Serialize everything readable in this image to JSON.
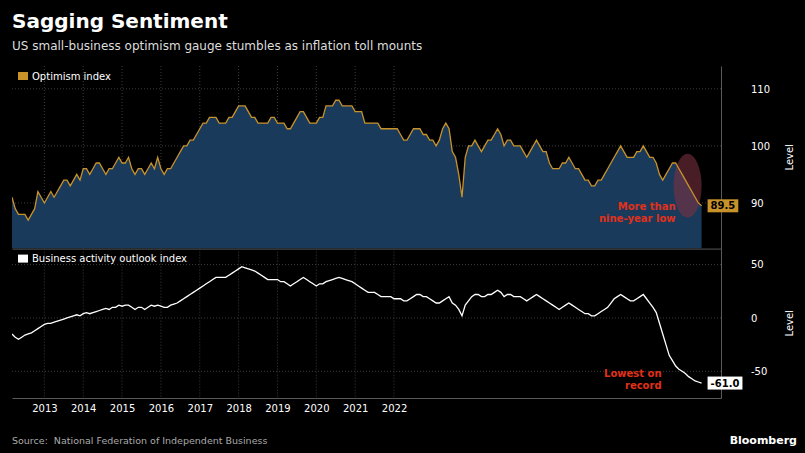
{
  "chart_data": [
    {
      "type": "area",
      "title": "Sagging Sentiment",
      "subtitle": "US small-business optimism gauge stumbles as inflation toll mounts",
      "ylabel": "Level",
      "x": [
        2012.1666666666667,
        2012.25,
        2012.3333333333333,
        2012.4166666666667,
        2012.5,
        2012.5833333333333,
        2012.6666666666667,
        2012.75,
        2012.8333333333333,
        2012.9166666666667,
        2013,
        2013.0833333333333,
        2013.1666666666667,
        2013.25,
        2013.3333333333333,
        2013.4166666666667,
        2013.5,
        2013.5833333333333,
        2013.6666666666667,
        2013.75,
        2013.8333333333333,
        2013.9166666666667,
        2014,
        2014.0833333333333,
        2014.1666666666667,
        2014.25,
        2014.3333333333333,
        2014.4166666666667,
        2014.5,
        2014.5833333333333,
        2014.6666666666667,
        2014.75,
        2014.8333333333333,
        2014.9166666666667,
        2015,
        2015.0833333333333,
        2015.1666666666667,
        2015.25,
        2015.3333333333333,
        2015.4166666666667,
        2015.5,
        2015.5833333333333,
        2015.6666666666667,
        2015.75,
        2015.8333333333333,
        2015.9166666666667,
        2016,
        2016.0833333333333,
        2016.1666666666667,
        2016.25,
        2016.3333333333333,
        2016.4166666666667,
        2016.5,
        2016.5833333333333,
        2016.6666666666667,
        2016.75,
        2016.8333333333333,
        2016.9166666666667,
        2017,
        2017.0833333333333,
        2017.1666666666667,
        2017.25,
        2017.3333333333333,
        2017.4166666666667,
        2017.5,
        2017.5833333333333,
        2017.6666666666667,
        2017.75,
        2017.8333333333333,
        2017.9166666666667,
        2018,
        2018.0833333333333,
        2018.1666666666667,
        2018.25,
        2018.3333333333333,
        2018.4166666666667,
        2018.5,
        2018.5833333333333,
        2018.6666666666667,
        2018.75,
        2018.8333333333333,
        2018.9166666666667,
        2019,
        2019.0833333333333,
        2019.1666666666667,
        2019.25,
        2019.3333333333333,
        2019.4166666666667,
        2019.5,
        2019.5833333333333,
        2019.6666666666667,
        2019.75,
        2019.8333333333333,
        2019.9166666666667,
        2020,
        2020.0833333333333,
        2020.1666666666667,
        2020.25,
        2020.3333333333333,
        2020.4166666666667,
        2020.5,
        2020.5833333333333,
        2020.6666666666667,
        2020.75,
        2020.8333333333333,
        2020.9166666666667,
        2021,
        2021.0833333333333,
        2021.1666666666667,
        2021.25,
        2021.3333333333333,
        2021.4166666666667,
        2021.5,
        2021.5833333333333,
        2021.6666666666667,
        2021.75,
        2021.8333333333333,
        2021.9166666666667,
        2022,
        2022.0833333333333,
        2022.1666666666667,
        2022.25,
        2022.3333333333333,
        2022.4166666666667,
        2022.5,
        2022.5833333333333,
        2022.6666666666667,
        2022.75,
        2022.8333333333333,
        2022.9166666666667,
        2023,
        2023.0833333333333,
        2023.1666666666667,
        2023.25,
        2023.3333333333333,
        2023.4166666666667,
        2023.5,
        2023.5833333333333,
        2023.6666666666667,
        2023.75,
        2023.8333333333333,
        2023.9166666666667,
        2024,
        2024.0833333333333,
        2024.1666666666667,
        2024.25,
        2024.3333333333333,
        2024.4166666666667,
        2024.5,
        2024.5833333333333,
        2024.6666666666667,
        2024.75,
        2024.8333333333333,
        2024.9166666666667,
        2025,
        2025.0833333333333,
        2025.1666666666667,
        2025.25,
        2025.3333333333333,
        2025.4166666666667,
        2025.5,
        2025.5833333333333,
        2025.6666666666667,
        2025.75,
        2025.8333333333333,
        2025.9166666666667,
        2026,
        2026.0833333333333,
        2026.1666666666667,
        2026.25,
        2026.3333333333333,
        2026.4166666666667,
        2026.5,
        2026.5833333333333,
        2026.6666666666667,
        2026.75,
        2026.8333333333333,
        2026.9166666666667,
        2027,
        2027.0833333333333,
        2027.1666666666667,
        2027.25,
        2027.3333333333333,
        2027.4166666666667,
        2027.5,
        2027.5833333333333,
        2027.6666666666667,
        2027.75,
        2027.8333333333333,
        2027.9166666666667,
        2028,
        2028.0833333333333,
        2028.1666666666667,
        2028.25,
        2028.3333333333333,
        2028.4166666666667,
        2028.5,
        2028.5833333333333,
        2028.6666666666667,
        2028.75,
        2028.8333333333333,
        2028.9166666666667,
        2029,
        2029.0833333333333,
        2029.1666666666667,
        2029.25,
        2029.3333333333333,
        2029.4166666666667,
        2029.5,
        2029.5833333333333,
        2029.6666666666667,
        2029.75,
        2029.8333333333333,
        2029.9166666666667
      ],
      "series": [
        {
          "name": "Optimism index",
          "color": "#c8922a",
          "values": [
            91,
            89,
            88,
            88,
            88,
            87,
            88,
            89,
            92,
            91,
            90,
            91,
            92,
            91,
            92,
            93,
            94,
            94,
            93,
            94,
            95,
            94,
            96,
            96,
            95,
            96,
            97,
            97,
            96,
            95,
            96,
            96,
            97,
            98,
            97,
            97,
            98,
            96,
            95,
            96,
            96,
            95,
            96,
            97,
            96,
            98,
            96,
            95,
            96,
            96,
            97,
            98,
            99,
            100,
            100,
            101,
            101,
            102,
            103,
            104,
            104,
            105,
            105,
            105,
            104,
            104,
            104,
            105,
            105,
            106,
            107,
            107,
            107,
            106,
            105,
            105,
            104,
            104,
            104,
            104,
            105,
            105,
            104,
            104,
            104,
            103,
            103,
            104,
            105,
            106,
            106,
            105,
            104,
            104,
            104,
            105,
            105,
            107,
            107,
            107,
            108,
            108,
            107,
            107,
            107,
            107,
            106,
            106,
            106,
            104,
            104,
            104,
            104,
            104,
            103,
            103,
            103,
            103,
            103,
            103,
            102,
            101,
            101,
            102,
            103,
            103,
            103,
            102,
            102,
            101,
            101,
            100,
            101,
            103,
            104,
            103,
            99,
            98,
            95,
            91,
            98,
            100,
            100,
            101,
            100,
            99,
            100,
            101,
            101,
            102,
            103,
            102,
            100,
            101,
            101,
            100,
            100,
            100,
            99,
            98,
            99,
            100,
            101,
            100,
            99,
            99,
            97,
            96,
            96,
            96,
            97,
            97,
            98,
            97,
            96,
            96,
            95,
            94,
            94,
            93,
            93,
            94,
            94,
            95,
            96,
            97,
            98,
            99,
            100,
            99,
            98,
            98,
            98,
            99,
            99,
            100,
            99,
            98,
            98,
            97,
            95,
            94,
            95,
            96,
            97,
            97,
            96,
            95,
            94,
            93,
            92,
            91,
            90,
            89.5
          ]
        }
      ],
      "xlim": [
        2012.1666666666667,
        2030.4166666666667
      ],
      "xticks": [
        2013,
        2014,
        2015,
        2016,
        2017,
        2018,
        2019,
        2020,
        2021,
        2022
      ],
      "ylim": [
        82,
        114
      ],
      "yticks": [
        90,
        100,
        110
      ],
      "grid": true,
      "legend": "upper left",
      "tick_labels": "y",
      "annotations": [
        "89.5",
        "More than\nnine-year low"
      ]
    },
    {
      "type": "line",
      "ylabel": "Level",
      "x": [
        2012.1666666666667,
        2012.25,
        2012.3333333333333,
        2012.4166666666667,
        2012.5,
        2012.5833333333333,
        2012.6666666666667,
        2012.75,
        2012.8333333333333,
        2012.9166666666667,
        2013,
        2013.0833333333333,
        2013.1666666666667,
        2013.25,
        2013.3333333333333,
        2013.4166666666667,
        2013.5,
        2013.5833333333333,
        2013.6666666666667,
        2013.75,
        2013.8333333333333,
        2013.9166666666667,
        2014,
        2014.0833333333333,
        2014.1666666666667,
        2014.25,
        2014.3333333333333,
        2014.4166666666667,
        2014.5,
        2014.5833333333333,
        2014.6666666666667,
        2014.75,
        2014.8333333333333,
        2014.9166666666667,
        2015,
        2015.0833333333333,
        2015.1666666666667,
        2015.25,
        2015.3333333333333,
        2015.4166666666667,
        2015.5,
        2015.5833333333333,
        2015.6666666666667,
        2015.75,
        2015.8333333333333,
        2015.9166666666667,
        2016,
        2016.0833333333333,
        2016.1666666666667,
        2016.25,
        2016.3333333333333,
        2016.4166666666667,
        2016.5,
        2016.5833333333333,
        2016.6666666666667,
        2016.75,
        2016.8333333333333,
        2016.9166666666667,
        2017,
        2017.0833333333333,
        2017.1666666666667,
        2017.25,
        2017.3333333333333,
        2017.4166666666667,
        2017.5,
        2017.5833333333333,
        2017.6666666666667,
        2017.75,
        2017.8333333333333,
        2017.9166666666667,
        2018,
        2018.0833333333333,
        2018.1666666666667,
        2018.25,
        2018.3333333333333,
        2018.4166666666667,
        2018.5,
        2018.5833333333333,
        2018.6666666666667,
        2018.75,
        2018.8333333333333,
        2018.9166666666667,
        2019,
        2019.0833333333333,
        2019.1666666666667,
        2019.25,
        2019.3333333333333,
        2019.4166666666667,
        2019.5,
        2019.5833333333333,
        2019.6666666666667,
        2019.75,
        2019.8333333333333,
        2019.9166666666667,
        2020,
        2020.0833333333333,
        2020.1666666666667,
        2020.25,
        2020.3333333333333,
        2020.4166666666667,
        2020.5,
        2020.5833333333333,
        2020.6666666666667,
        2020.75,
        2020.8333333333333,
        2020.9166666666667,
        2021,
        2021.0833333333333,
        2021.1666666666667,
        2021.25,
        2021.3333333333333,
        2021.4166666666667,
        2021.5,
        2021.5833333333333,
        2021.6666666666667,
        2021.75,
        2021.8333333333333,
        2021.9166666666667,
        2022,
        2022.0833333333333,
        2022.1666666666667,
        2022.25,
        2022.3333333333333,
        2022.4166666666667,
        2022.5,
        2022.5833333333333,
        2022.6666666666667,
        2022.75,
        2022.8333333333333,
        2022.9166666666667,
        2023,
        2023.0833333333333,
        2023.1666666666667,
        2023.25,
        2023.3333333333333,
        2023.4166666666667,
        2023.5,
        2023.5833333333333,
        2023.6666666666667,
        2023.75,
        2023.8333333333333,
        2023.9166666666667,
        2024,
        2024.0833333333333,
        2024.1666666666667,
        2024.25,
        2024.3333333333333,
        2024.4166666666667,
        2024.5,
        2024.5833333333333,
        2024.6666666666667,
        2024.75,
        2024.8333333333333,
        2024.9166666666667,
        2025,
        2025.0833333333333,
        2025.1666666666667,
        2025.25,
        2025.3333333333333,
        2025.4166666666667,
        2025.5,
        2025.5833333333333,
        2025.6666666666667,
        2025.75,
        2025.8333333333333,
        2025.9166666666667,
        2026,
        2026.0833333333333,
        2026.1666666666667,
        2026.25,
        2026.3333333333333,
        2026.4166666666667,
        2026.5,
        2026.5833333333333,
        2026.6666666666667,
        2026.75,
        2026.8333333333333,
        2026.9166666666667,
        2027,
        2027.0833333333333,
        2027.1666666666667,
        2027.25,
        2027.3333333333333,
        2027.4166666666667,
        2027.5,
        2027.5833333333333,
        2027.6666666666667,
        2027.75,
        2027.8333333333333,
        2027.9166666666667,
        2028,
        2028.0833333333333,
        2028.1666666666667,
        2028.25,
        2028.3333333333333,
        2028.4166666666667,
        2028.5,
        2028.5833333333333,
        2028.6666666666667,
        2028.75,
        2028.8333333333333,
        2028.9166666666667,
        2029,
        2029.0833333333333,
        2029.1666666666667,
        2029.25,
        2029.3333333333333,
        2029.4166666666667,
        2029.5,
        2029.5833333333333,
        2029.6666666666667,
        2029.75,
        2029.8333333333333,
        2029.9166666666667
      ],
      "series": [
        {
          "name": "Business activity outlook index",
          "color": "#ffffff",
          "values": [
            -15,
            -18,
            -20,
            -18,
            -16,
            -15,
            -14,
            -12,
            -10,
            -8,
            -6,
            -5,
            -5,
            -4,
            -3,
            -2,
            -1,
            0,
            1,
            2,
            3,
            2,
            4,
            5,
            4,
            5,
            6,
            7,
            8,
            9,
            8,
            10,
            10,
            12,
            11,
            12,
            12,
            10,
            8,
            10,
            10,
            8,
            10,
            12,
            11,
            12,
            11,
            10,
            10,
            12,
            13,
            14,
            16,
            18,
            20,
            22,
            24,
            26,
            28,
            30,
            32,
            34,
            36,
            38,
            38,
            38,
            38,
            40,
            42,
            44,
            46,
            48,
            47,
            46,
            45,
            44,
            42,
            40,
            38,
            36,
            36,
            36,
            36,
            34,
            34,
            32,
            30,
            32,
            34,
            36,
            38,
            36,
            34,
            32,
            30,
            32,
            32,
            34,
            35,
            36,
            37,
            38,
            37,
            36,
            35,
            34,
            32,
            30,
            28,
            26,
            24,
            24,
            24,
            22,
            20,
            20,
            20,
            20,
            18,
            18,
            18,
            16,
            16,
            18,
            20,
            22,
            22,
            20,
            20,
            18,
            16,
            14,
            14,
            16,
            18,
            20,
            14,
            12,
            8,
            2,
            12,
            16,
            20,
            22,
            22,
            20,
            20,
            22,
            22,
            24,
            26,
            24,
            20,
            22,
            22,
            20,
            20,
            20,
            18,
            16,
            18,
            20,
            22,
            20,
            18,
            16,
            14,
            12,
            10,
            8,
            10,
            12,
            14,
            12,
            10,
            8,
            6,
            4,
            4,
            2,
            2,
            4,
            6,
            8,
            10,
            14,
            18,
            20,
            22,
            20,
            18,
            16,
            16,
            18,
            20,
            22,
            18,
            14,
            10,
            5,
            -5,
            -15,
            -25,
            -35,
            -40,
            -45,
            -48,
            -50,
            -52,
            -55,
            -57,
            -59,
            -60,
            -61.0
          ]
        }
      ],
      "xlim": [
        2012.1666666666667,
        2030.4166666666667
      ],
      "xticks": [
        2013,
        2014,
        2015,
        2016,
        2017,
        2018,
        2019,
        2020,
        2021,
        2022
      ],
      "ylim": [
        -75,
        65
      ],
      "yticks": [
        -50,
        0,
        50
      ],
      "grid": true,
      "legend": "upper left",
      "annotations": [
        "-61.0",
        "Lowest on\nrecord",
        "Source:  National Federation of Independent Business",
        "Bloomberg"
      ]
    }
  ]
}
